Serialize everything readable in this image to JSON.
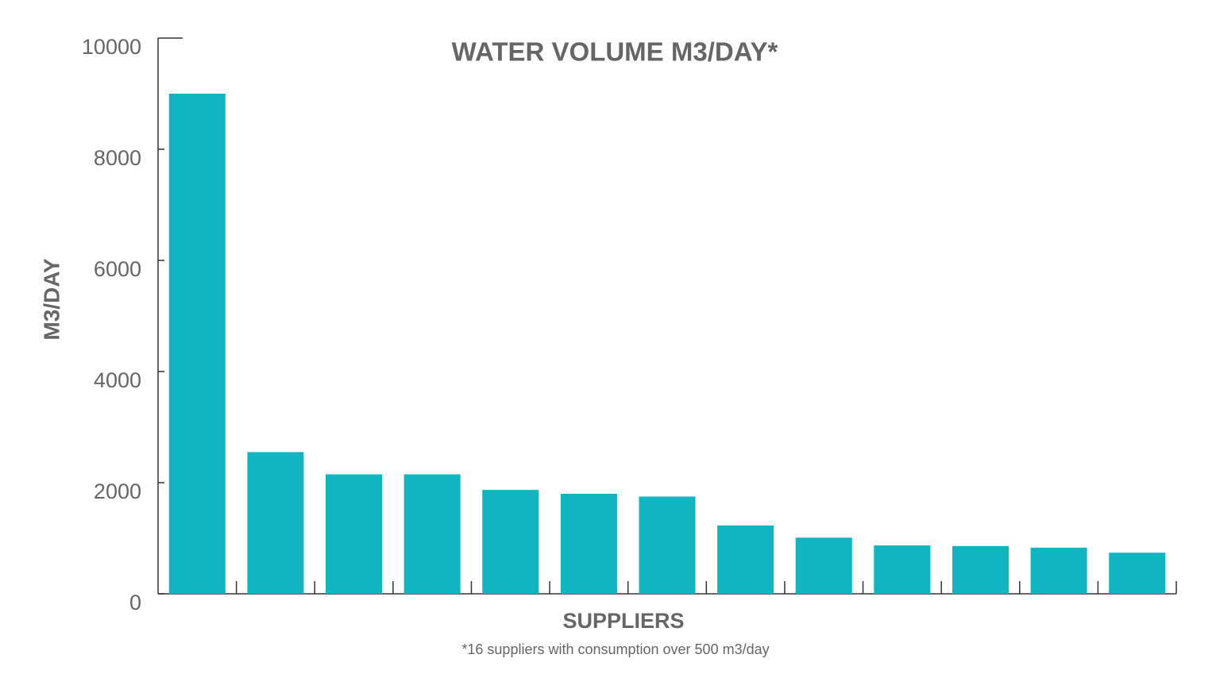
{
  "chart_data": {
    "type": "bar",
    "title": "WATER VOLUME M3/DAY*",
    "y_label": "M3/DAY",
    "x_label": "SUPPLIERS",
    "note": "*16 suppliers with consumption over 500 m3/day",
    "categories": [
      null,
      null,
      null,
      null,
      null,
      null,
      null,
      null,
      null,
      null,
      null,
      null,
      null
    ],
    "values": [
      9000,
      2550,
      2150,
      2150,
      1870,
      1800,
      1750,
      1230,
      1010,
      870,
      860,
      830,
      740
    ],
    "color": "#10b5c1",
    "ylim": [
      0,
      10000
    ],
    "yticks": [
      0,
      2000,
      4000,
      6000,
      8000,
      10000
    ],
    "grid": false
  }
}
